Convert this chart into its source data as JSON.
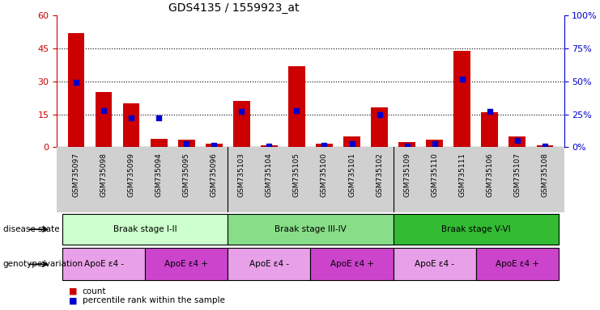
{
  "title": "GDS4135 / 1559923_at",
  "samples": [
    "GSM735097",
    "GSM735098",
    "GSM735099",
    "GSM735094",
    "GSM735095",
    "GSM735096",
    "GSM735103",
    "GSM735104",
    "GSM735105",
    "GSM735100",
    "GSM735101",
    "GSM735102",
    "GSM735109",
    "GSM735110",
    "GSM735111",
    "GSM735106",
    "GSM735107",
    "GSM735108"
  ],
  "counts": [
    52,
    25,
    20,
    4,
    3.5,
    1.5,
    21,
    1,
    37,
    1.5,
    5,
    18,
    2.5,
    3.5,
    44,
    16,
    5,
    1
  ],
  "percentiles": [
    49,
    28,
    22,
    22,
    3,
    1.5,
    27,
    1,
    28,
    1.5,
    3,
    25,
    1,
    3,
    52,
    27,
    5,
    1
  ],
  "ylim_left": [
    0,
    60
  ],
  "ylim_right": [
    0,
    100
  ],
  "yticks_left": [
    0,
    15,
    30,
    45,
    60
  ],
  "yticks_right": [
    0,
    25,
    50,
    75,
    100
  ],
  "bar_color": "#cc0000",
  "dot_color": "#0000cc",
  "bg_color": "#ffffff",
  "tick_area_color": "#d0d0d0",
  "disease_state_groups": [
    {
      "label": "Braak stage I-II",
      "start": 0,
      "end": 6,
      "color": "#ccffcc"
    },
    {
      "label": "Braak stage III-IV",
      "start": 6,
      "end": 12,
      "color": "#88dd88"
    },
    {
      "label": "Braak stage V-VI",
      "start": 12,
      "end": 18,
      "color": "#33bb33"
    }
  ],
  "genotype_groups": [
    {
      "label": "ApoE ε4 -",
      "start": 0,
      "end": 3,
      "color": "#e8a0e8"
    },
    {
      "label": "ApoE ε4 +",
      "start": 3,
      "end": 6,
      "color": "#cc44cc"
    },
    {
      "label": "ApoE ε4 -",
      "start": 6,
      "end": 9,
      "color": "#e8a0e8"
    },
    {
      "label": "ApoE ε4 +",
      "start": 9,
      "end": 12,
      "color": "#cc44cc"
    },
    {
      "label": "ApoE ε4 -",
      "start": 12,
      "end": 15,
      "color": "#e8a0e8"
    },
    {
      "label": "ApoE ε4 +",
      "start": 15,
      "end": 18,
      "color": "#cc44cc"
    }
  ],
  "legend_count_label": "count",
  "legend_percentile_label": "percentile rank within the sample",
  "label_disease_state": "disease state",
  "label_genotype": "genotype/variation",
  "left_axis_color": "#cc0000",
  "right_axis_color": "#0000cc"
}
